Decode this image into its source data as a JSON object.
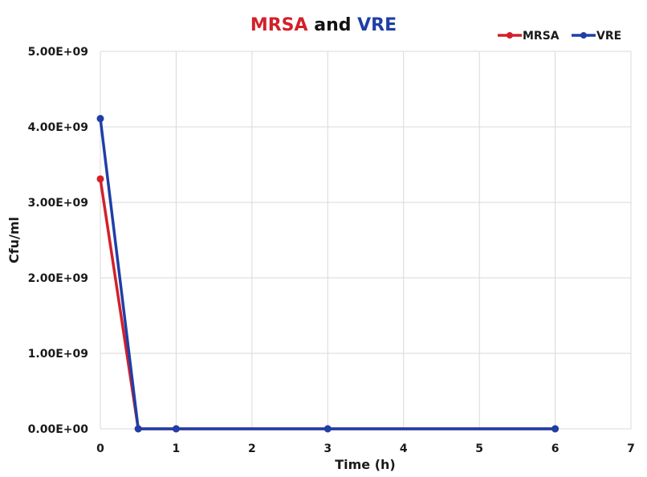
{
  "chart_data": {
    "type": "line",
    "title_parts": [
      {
        "text": "MRSA",
        "color": "#d3202a"
      },
      {
        "text": " and ",
        "color": "#111111"
      },
      {
        "text": "VRE",
        "color": "#1f3fa6"
      }
    ],
    "title": "MRSA and VRE",
    "xlabel": "Time (h)",
    "ylabel": "Cfu/ml",
    "xlim": [
      0,
      7
    ],
    "ylim": [
      0,
      5000000000
    ],
    "x_ticks": [
      0,
      1,
      2,
      3,
      4,
      5,
      6,
      7
    ],
    "x_tick_labels": [
      "0",
      "1",
      "2",
      "3",
      "4",
      "5",
      "6",
      "7"
    ],
    "y_ticks": [
      0,
      1000000000,
      2000000000,
      3000000000,
      4000000000,
      5000000000
    ],
    "y_tick_labels": [
      "0.00E+00",
      "1.00E+09",
      "2.00E+09",
      "3.00E+09",
      "4.00E+09",
      "5.00E+09"
    ],
    "grid": true,
    "legend_position": "top-right",
    "series": [
      {
        "name": "MRSA",
        "color": "#d3202a",
        "x": [
          0,
          0.5,
          1,
          3,
          6
        ],
        "values": [
          3310000000,
          0,
          0,
          0,
          0
        ]
      },
      {
        "name": "VRE",
        "color": "#1f3fa6",
        "x": [
          0,
          0.5,
          1,
          3,
          6
        ],
        "values": [
          4110000000,
          0,
          0,
          0,
          0
        ]
      }
    ]
  }
}
